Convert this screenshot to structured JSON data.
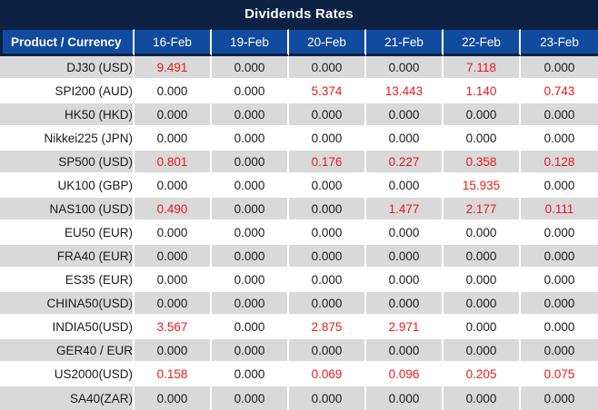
{
  "title": "Dividends Rates",
  "colors": {
    "title_bar_bg": "#0d2144",
    "header_bg": "#114b9f",
    "header_text": "#ffffff",
    "row_alt_bg": "#d9d9d9",
    "row_bg": "#ffffff",
    "value_zero_text": "#1a1a1a",
    "value_nonzero_text": "#e8191c"
  },
  "chart_data": {
    "type": "table",
    "title": "Dividends Rates",
    "columns": [
      "Product / Currency",
      "16-Feb",
      "19-Feb",
      "20-Feb",
      "21-Feb",
      "22-Feb",
      "23-Feb"
    ],
    "rows": [
      {
        "product": "DJ30 (USD)",
        "values": [
          "9.491",
          "0.000",
          "0.000",
          "0.000",
          "7.118",
          "0.000"
        ]
      },
      {
        "product": "SPI200 (AUD)",
        "values": [
          "0.000",
          "0.000",
          "5.374",
          "13.443",
          "1.140",
          "0.743"
        ]
      },
      {
        "product": "HK50 (HKD)",
        "values": [
          "0.000",
          "0.000",
          "0.000",
          "0.000",
          "0.000",
          "0.000"
        ]
      },
      {
        "product": "Nikkei225 (JPN)",
        "values": [
          "0.000",
          "0.000",
          "0.000",
          "0.000",
          "0.000",
          "0.000"
        ]
      },
      {
        "product": "SP500 (USD)",
        "values": [
          "0.801",
          "0.000",
          "0.176",
          "0.227",
          "0.358",
          "0.128"
        ]
      },
      {
        "product": "UK100 (GBP)",
        "values": [
          "0.000",
          "0.000",
          "0.000",
          "0.000",
          "15.935",
          "0.000"
        ]
      },
      {
        "product": "NAS100 (USD)",
        "values": [
          "0.490",
          "0.000",
          "0.000",
          "1.477",
          "2.177",
          "0.111"
        ]
      },
      {
        "product": "EU50 (EUR)",
        "values": [
          "0.000",
          "0.000",
          "0.000",
          "0.000",
          "0.000",
          "0.000"
        ]
      },
      {
        "product": "FRA40 (EUR)",
        "values": [
          "0.000",
          "0.000",
          "0.000",
          "0.000",
          "0.000",
          "0.000"
        ]
      },
      {
        "product": "ES35 (EUR)",
        "values": [
          "0.000",
          "0.000",
          "0.000",
          "0.000",
          "0.000",
          "0.000"
        ]
      },
      {
        "product": "CHINA50(USD)",
        "values": [
          "0.000",
          "0.000",
          "0.000",
          "0.000",
          "0.000",
          "0.000"
        ]
      },
      {
        "product": "INDIA50(USD)",
        "values": [
          "3.567",
          "0.000",
          "2.875",
          "2.971",
          "0.000",
          "0.000"
        ]
      },
      {
        "product": "GER40 / EUR",
        "values": [
          "0.000",
          "0.000",
          "0.000",
          "0.000",
          "0.000",
          "0.000"
        ]
      },
      {
        "product": "US2000(USD)",
        "values": [
          "0.158",
          "0.000",
          "0.069",
          "0.096",
          "0.205",
          "0.075"
        ]
      },
      {
        "product": "SA40(ZAR)",
        "values": [
          "0.000",
          "0.000",
          "0.000",
          "0.000",
          "0.000",
          "0.000"
        ]
      }
    ],
    "style_note": "non-zero values rendered in red; alternating gray/white rows",
    "legend_position": "none",
    "grid": "white cell separators"
  }
}
